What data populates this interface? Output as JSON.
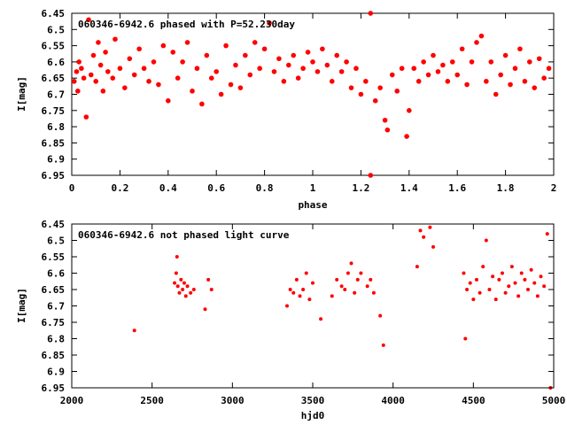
{
  "chart_data": [
    {
      "type": "scatter",
      "title": "060346-6942.6 phased with P=52.230day",
      "xlabel": "phase",
      "ylabel": "I[mag]",
      "xlim": [
        0,
        2
      ],
      "ylim": [
        6.45,
        6.95
      ],
      "y_inverted": true,
      "xticks": [
        "0",
        "0.2",
        "0.4",
        "0.6",
        "0.8",
        "1",
        "1.2",
        "1.4",
        "1.6",
        "1.8",
        "2"
      ],
      "yticks": [
        "6.45",
        "6.5",
        "6.55",
        "6.6",
        "6.65",
        "6.7",
        "6.75",
        "6.8",
        "6.85",
        "6.9",
        "6.95"
      ],
      "grid": false,
      "legend": "none",
      "marker_color": "#ff0000",
      "series": [
        {
          "points": [
            [
              0.01,
              6.66
            ],
            [
              0.02,
              6.63
            ],
            [
              0.025,
              6.69
            ],
            [
              0.03,
              6.6
            ],
            [
              0.04,
              6.62
            ],
            [
              0.05,
              6.65
            ],
            [
              0.06,
              6.77
            ],
            [
              0.07,
              6.47
            ],
            [
              0.08,
              6.64
            ],
            [
              0.09,
              6.58
            ],
            [
              0.1,
              6.66
            ],
            [
              0.11,
              6.54
            ],
            [
              0.12,
              6.61
            ],
            [
              0.13,
              6.69
            ],
            [
              0.14,
              6.57
            ],
            [
              0.15,
              6.63
            ],
            [
              0.17,
              6.65
            ],
            [
              0.18,
              6.53
            ],
            [
              0.2,
              6.62
            ],
            [
              0.22,
              6.68
            ],
            [
              0.24,
              6.59
            ],
            [
              0.26,
              6.64
            ],
            [
              0.28,
              6.56
            ],
            [
              0.3,
              6.62
            ],
            [
              0.32,
              6.66
            ],
            [
              0.34,
              6.6
            ],
            [
              0.36,
              6.67
            ],
            [
              0.38,
              6.55
            ],
            [
              0.4,
              6.72
            ],
            [
              0.42,
              6.57
            ],
            [
              0.44,
              6.65
            ],
            [
              0.46,
              6.6
            ],
            [
              0.48,
              6.54
            ],
            [
              0.5,
              6.69
            ],
            [
              0.52,
              6.62
            ],
            [
              0.54,
              6.73
            ],
            [
              0.56,
              6.58
            ],
            [
              0.58,
              6.65
            ],
            [
              0.6,
              6.63
            ],
            [
              0.62,
              6.7
            ],
            [
              0.64,
              6.55
            ],
            [
              0.66,
              6.67
            ],
            [
              0.68,
              6.61
            ],
            [
              0.7,
              6.68
            ],
            [
              0.72,
              6.58
            ],
            [
              0.74,
              6.64
            ],
            [
              0.76,
              6.54
            ],
            [
              0.78,
              6.62
            ],
            [
              0.8,
              6.56
            ],
            [
              0.82,
              6.48
            ],
            [
              0.84,
              6.63
            ],
            [
              0.86,
              6.59
            ],
            [
              0.88,
              6.66
            ],
            [
              0.9,
              6.61
            ],
            [
              0.92,
              6.58
            ],
            [
              0.94,
              6.65
            ],
            [
              0.96,
              6.62
            ],
            [
              0.98,
              6.57
            ],
            [
              1.0,
              6.6
            ],
            [
              1.02,
              6.63
            ],
            [
              1.04,
              6.56
            ],
            [
              1.06,
              6.61
            ],
            [
              1.08,
              6.66
            ],
            [
              1.1,
              6.58
            ],
            [
              1.12,
              6.63
            ],
            [
              1.14,
              6.6
            ],
            [
              1.16,
              6.68
            ],
            [
              1.18,
              6.62
            ],
            [
              1.2,
              6.7
            ],
            [
              1.22,
              6.66
            ],
            [
              1.24,
              6.45
            ],
            [
              1.24,
              6.95
            ],
            [
              1.26,
              6.72
            ],
            [
              1.28,
              6.68
            ],
            [
              1.3,
              6.78
            ],
            [
              1.31,
              6.81
            ],
            [
              1.33,
              6.64
            ],
            [
              1.35,
              6.69
            ],
            [
              1.37,
              6.62
            ],
            [
              1.39,
              6.83
            ],
            [
              1.4,
              6.75
            ],
            [
              1.42,
              6.62
            ],
            [
              1.44,
              6.66
            ],
            [
              1.46,
              6.6
            ],
            [
              1.48,
              6.64
            ],
            [
              1.5,
              6.58
            ],
            [
              1.52,
              6.63
            ],
            [
              1.54,
              6.61
            ],
            [
              1.56,
              6.66
            ],
            [
              1.58,
              6.6
            ],
            [
              1.6,
              6.64
            ],
            [
              1.62,
              6.56
            ],
            [
              1.64,
              6.67
            ],
            [
              1.66,
              6.6
            ],
            [
              1.68,
              6.54
            ],
            [
              1.7,
              6.52
            ],
            [
              1.72,
              6.66
            ],
            [
              1.74,
              6.6
            ],
            [
              1.76,
              6.7
            ],
            [
              1.78,
              6.64
            ],
            [
              1.8,
              6.58
            ],
            [
              1.82,
              6.67
            ],
            [
              1.84,
              6.62
            ],
            [
              1.86,
              6.56
            ],
            [
              1.88,
              6.66
            ],
            [
              1.9,
              6.6
            ],
            [
              1.92,
              6.68
            ],
            [
              1.94,
              6.59
            ],
            [
              1.96,
              6.65
            ],
            [
              1.98,
              6.62
            ]
          ]
        }
      ]
    },
    {
      "type": "scatter",
      "title": "060346-6942.6 not phased light curve",
      "xlabel": "hjd0",
      "ylabel": "I[mag]",
      "xlim": [
        2000,
        5000
      ],
      "ylim": [
        6.45,
        6.95
      ],
      "y_inverted": true,
      "xticks": [
        "2000",
        "2500",
        "3000",
        "3500",
        "4000",
        "4500",
        "5000"
      ],
      "yticks": [
        "6.45",
        "6.5",
        "6.55",
        "6.6",
        "6.65",
        "6.7",
        "6.75",
        "6.8",
        "6.85",
        "6.9",
        "6.95"
      ],
      "grid": false,
      "legend": "none",
      "marker_color": "#ff0000",
      "series": [
        {
          "points": [
            [
              2390,
              6.775
            ],
            [
              2640,
              6.63
            ],
            [
              2650,
              6.6
            ],
            [
              2655,
              6.55
            ],
            [
              2660,
              6.64
            ],
            [
              2670,
              6.66
            ],
            [
              2680,
              6.62
            ],
            [
              2690,
              6.65
            ],
            [
              2700,
              6.63
            ],
            [
              2710,
              6.67
            ],
            [
              2720,
              6.64
            ],
            [
              2740,
              6.66
            ],
            [
              2760,
              6.65
            ],
            [
              2830,
              6.71
            ],
            [
              2850,
              6.62
            ],
            [
              2870,
              6.65
            ],
            [
              3340,
              6.7
            ],
            [
              3360,
              6.65
            ],
            [
              3380,
              6.66
            ],
            [
              3400,
              6.62
            ],
            [
              3420,
              6.67
            ],
            [
              3440,
              6.65
            ],
            [
              3460,
              6.6
            ],
            [
              3480,
              6.68
            ],
            [
              3500,
              6.63
            ],
            [
              3550,
              6.74
            ],
            [
              3620,
              6.67
            ],
            [
              3650,
              6.62
            ],
            [
              3680,
              6.64
            ],
            [
              3700,
              6.65
            ],
            [
              3720,
              6.6
            ],
            [
              3740,
              6.57
            ],
            [
              3760,
              6.66
            ],
            [
              3780,
              6.62
            ],
            [
              3800,
              6.6
            ],
            [
              3840,
              6.64
            ],
            [
              3860,
              6.62
            ],
            [
              3880,
              6.66
            ],
            [
              3920,
              6.73
            ],
            [
              3940,
              6.82
            ],
            [
              4150,
              6.58
            ],
            [
              4170,
              6.47
            ],
            [
              4190,
              6.49
            ],
            [
              4230,
              6.46
            ],
            [
              4250,
              6.52
            ],
            [
              4440,
              6.6
            ],
            [
              4450,
              6.8
            ],
            [
              4460,
              6.65
            ],
            [
              4480,
              6.63
            ],
            [
              4500,
              6.68
            ],
            [
              4520,
              6.62
            ],
            [
              4540,
              6.66
            ],
            [
              4560,
              6.58
            ],
            [
              4580,
              6.5
            ],
            [
              4600,
              6.65
            ],
            [
              4620,
              6.61
            ],
            [
              4640,
              6.68
            ],
            [
              4660,
              6.62
            ],
            [
              4680,
              6.6
            ],
            [
              4700,
              6.66
            ],
            [
              4720,
              6.64
            ],
            [
              4740,
              6.58
            ],
            [
              4760,
              6.63
            ],
            [
              4780,
              6.67
            ],
            [
              4800,
              6.6
            ],
            [
              4820,
              6.62
            ],
            [
              4840,
              6.65
            ],
            [
              4860,
              6.59
            ],
            [
              4880,
              6.63
            ],
            [
              4900,
              6.67
            ],
            [
              4920,
              6.61
            ],
            [
              4940,
              6.64
            ],
            [
              4960,
              6.48
            ],
            [
              4980,
              6.95
            ]
          ]
        }
      ]
    }
  ]
}
